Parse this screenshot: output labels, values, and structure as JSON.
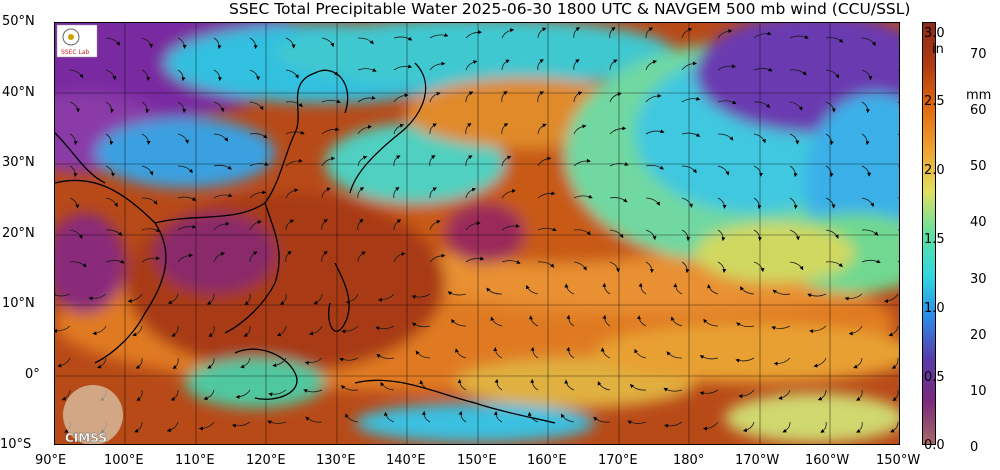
{
  "title": "SSEC Total Precipitable Water  2025-06-30 1800 UTC & NAVGEM 500 mb wind (CCU/SSL)",
  "lat_labels": [
    "50°N",
    "40°N",
    "30°N",
    "20°N",
    "10°N",
    "0°",
    "10°S"
  ],
  "lon_labels": [
    "90°E",
    "100°E",
    "110°E",
    "120°E",
    "130°E",
    "140°E",
    "150°E",
    "160°E",
    "170°E",
    "180°",
    "170°W",
    "160°W",
    "150°W"
  ],
  "colorbar": {
    "in_unit": "in",
    "mm_unit": "mm",
    "in_ticks": [
      "3.0",
      "2.5",
      "2.0",
      "1.5",
      "1.0",
      "0.5",
      "0.0"
    ],
    "mm_ticks": [
      "70",
      "60",
      "50",
      "40",
      "30",
      "20",
      "10",
      "0"
    ],
    "colors": [
      "#a86a6a",
      "#7a2a7a",
      "#5a3aa8",
      "#2a8ae8",
      "#30d8e0",
      "#60e0a0",
      "#e0e060",
      "#f0a030",
      "#e06a10",
      "#b03a10",
      "#8a2a1a"
    ]
  },
  "logos": {
    "ssec": "SSEC logo",
    "cimss": "CIMSS"
  }
}
